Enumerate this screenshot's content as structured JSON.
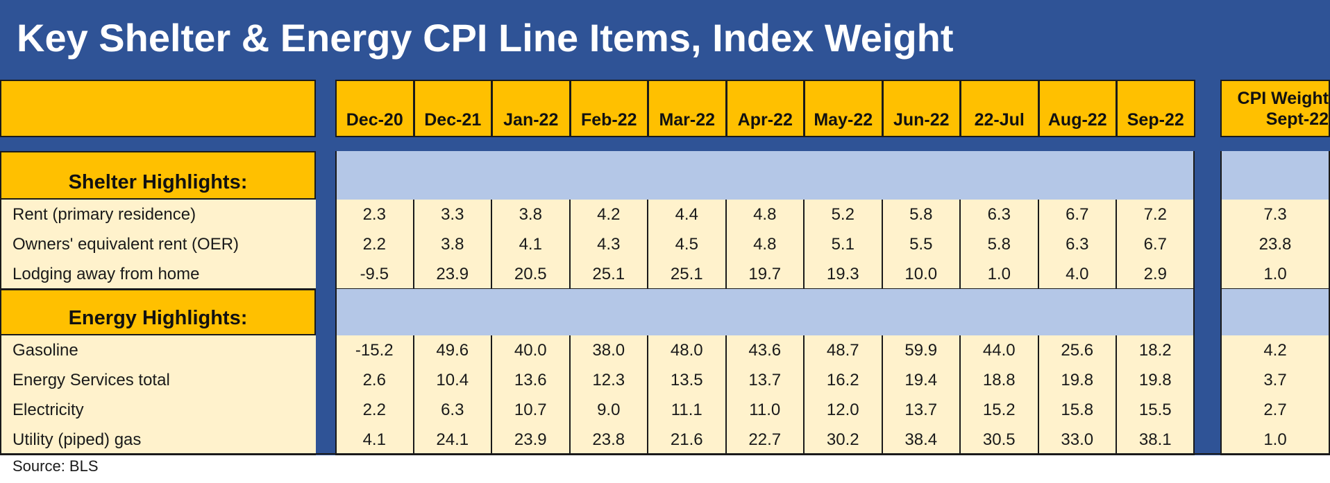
{
  "chart_data": {
    "type": "table",
    "title": "Key Shelter & Energy CPI Line Items, Index Weight",
    "columns": [
      "Dec-20",
      "Dec-21",
      "Jan-22",
      "Feb-22",
      "Mar-22",
      "Apr-22",
      "May-22",
      "Jun-22",
      "22-Jul",
      "Aug-22",
      "Sep-22"
    ],
    "weight_header": [
      "CPI Weight",
      "Sept-22"
    ],
    "sections": [
      {
        "label": "Shelter Highlights:",
        "rows": [
          {
            "name": "Rent (primary residence)",
            "values": [
              "2.3",
              "3.3",
              "3.8",
              "4.2",
              "4.4",
              "4.8",
              "5.2",
              "5.8",
              "6.3",
              "6.7",
              "7.2"
            ],
            "weight": "7.3"
          },
          {
            "name": "Owners' equivalent rent (OER)",
            "values": [
              "2.2",
              "3.8",
              "4.1",
              "4.3",
              "4.5",
              "4.8",
              "5.1",
              "5.5",
              "5.8",
              "6.3",
              "6.7"
            ],
            "weight": "23.8"
          },
          {
            "name": "Lodging away from home",
            "values": [
              "-9.5",
              "23.9",
              "20.5",
              "25.1",
              "25.1",
              "19.7",
              "19.3",
              "10.0",
              "1.0",
              "4.0",
              "2.9"
            ],
            "weight": "1.0"
          }
        ]
      },
      {
        "label": "Energy Highlights:",
        "rows": [
          {
            "name": "Gasoline",
            "values": [
              "-15.2",
              "49.6",
              "40.0",
              "38.0",
              "48.0",
              "43.6",
              "48.7",
              "59.9",
              "44.0",
              "25.6",
              "18.2"
            ],
            "weight": "4.2"
          },
          {
            "name": "Energy Services total",
            "values": [
              "2.6",
              "10.4",
              "13.6",
              "12.3",
              "13.5",
              "13.7",
              "16.2",
              "19.4",
              "18.8",
              "19.8",
              "19.8"
            ],
            "weight": "3.7"
          },
          {
            "name": "Electricity",
            "values": [
              "2.2",
              "6.3",
              "10.7",
              "9.0",
              "11.1",
              "11.0",
              "12.0",
              "13.7",
              "15.2",
              "15.8",
              "15.5"
            ],
            "weight": "2.7"
          },
          {
            "name": "Utility (piped) gas",
            "values": [
              "4.1",
              "24.1",
              "23.9",
              "23.8",
              "21.6",
              "22.7",
              "30.2",
              "38.4",
              "30.5",
              "33.0",
              "38.1"
            ],
            "weight": "1.0"
          }
        ]
      }
    ],
    "source": "Source: BLS"
  },
  "colors": {
    "navy": "#2f5396",
    "gold": "#ffc000",
    "band": "#b4c7e7",
    "cell": "#fff2cc"
  }
}
